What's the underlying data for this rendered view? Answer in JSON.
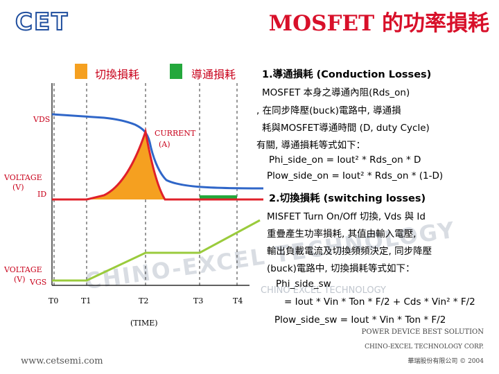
{
  "logo": {
    "text": "CET"
  },
  "title": "MOSFET 的功率損耗",
  "legend": {
    "switching": "切換損耗",
    "conduction": "導通損耗"
  },
  "colors": {
    "switching_fill": "#f5a020",
    "conduction_fill": "#24a83c",
    "vds": "#2f66c8",
    "current": "#e0202a",
    "vgs": "#9acb3c",
    "title": "#d8102a"
  },
  "plot": {
    "vds_label": "VDS",
    "current_label_1": "CURRENT",
    "current_label_2": "(A)",
    "voltage_label_1a": "VOLTAGE",
    "voltage_label_1b": "(V)",
    "id_label": "ID",
    "voltage_label_2a": "VOLTAGE",
    "voltage_label_2b": "(V)",
    "vgs_label": "VGS",
    "t0": "T0",
    "t1": "T1",
    "t2": "T2",
    "t3": "T3",
    "t4": "T4",
    "time_label": "(TIME)"
  },
  "text": {
    "conduction_heading": "1.導通損耗 (Conduction Losses)",
    "conduction_line1": "MOSFET 本身之導通內阻(Rds_on)",
    "conduction_line2": ", 在同步降壓(buck)電路中, 導通損",
    "conduction_line3": "耗與MOSFET導通時間 (D, duty Cycle)",
    "conduction_line4": "有關, 導通損耗等式如下：",
    "formula_hi_on": "Phi_side_on = Iout² * Rds_on * D",
    "formula_low_on": "Plow_side_on = Iout² * Rds_on * (1-D)",
    "switching_heading": "2.切換損耗 (switching losses)",
    "switching_line1": "MISFET Turn On/Off 切換, Vds 與 Id",
    "switching_line2": "重疊產生功率損耗, 其值由輸入電壓,",
    "switching_line3": "輸出負載電流及切換頻頻決定, 同步降壓",
    "switching_line4": "(buck)電路中, 切換損耗等式如下：",
    "formula_hi_sw_label": "Phi_side_sw",
    "formula_hi_sw": "= Iout * Vin * Ton * F/2 + Cds * Vin² * F/2",
    "formula_low_sw": "Plow_side_sw = Iout * Vin * Ton * F/2"
  },
  "watermark": {
    "main": "CHINO-EXCEL TECHNOLOGY",
    "small": "CHINO EXCEL TECHNOLOGY"
  },
  "footer": {
    "website": "www.cetsemi.com",
    "line1": "POWER DEVICE BEST SOLUTION",
    "line2": "CHINO-EXCEL TECHNOLOGY CORP.",
    "line3": "華瑞股份有限公司 © 2004"
  }
}
